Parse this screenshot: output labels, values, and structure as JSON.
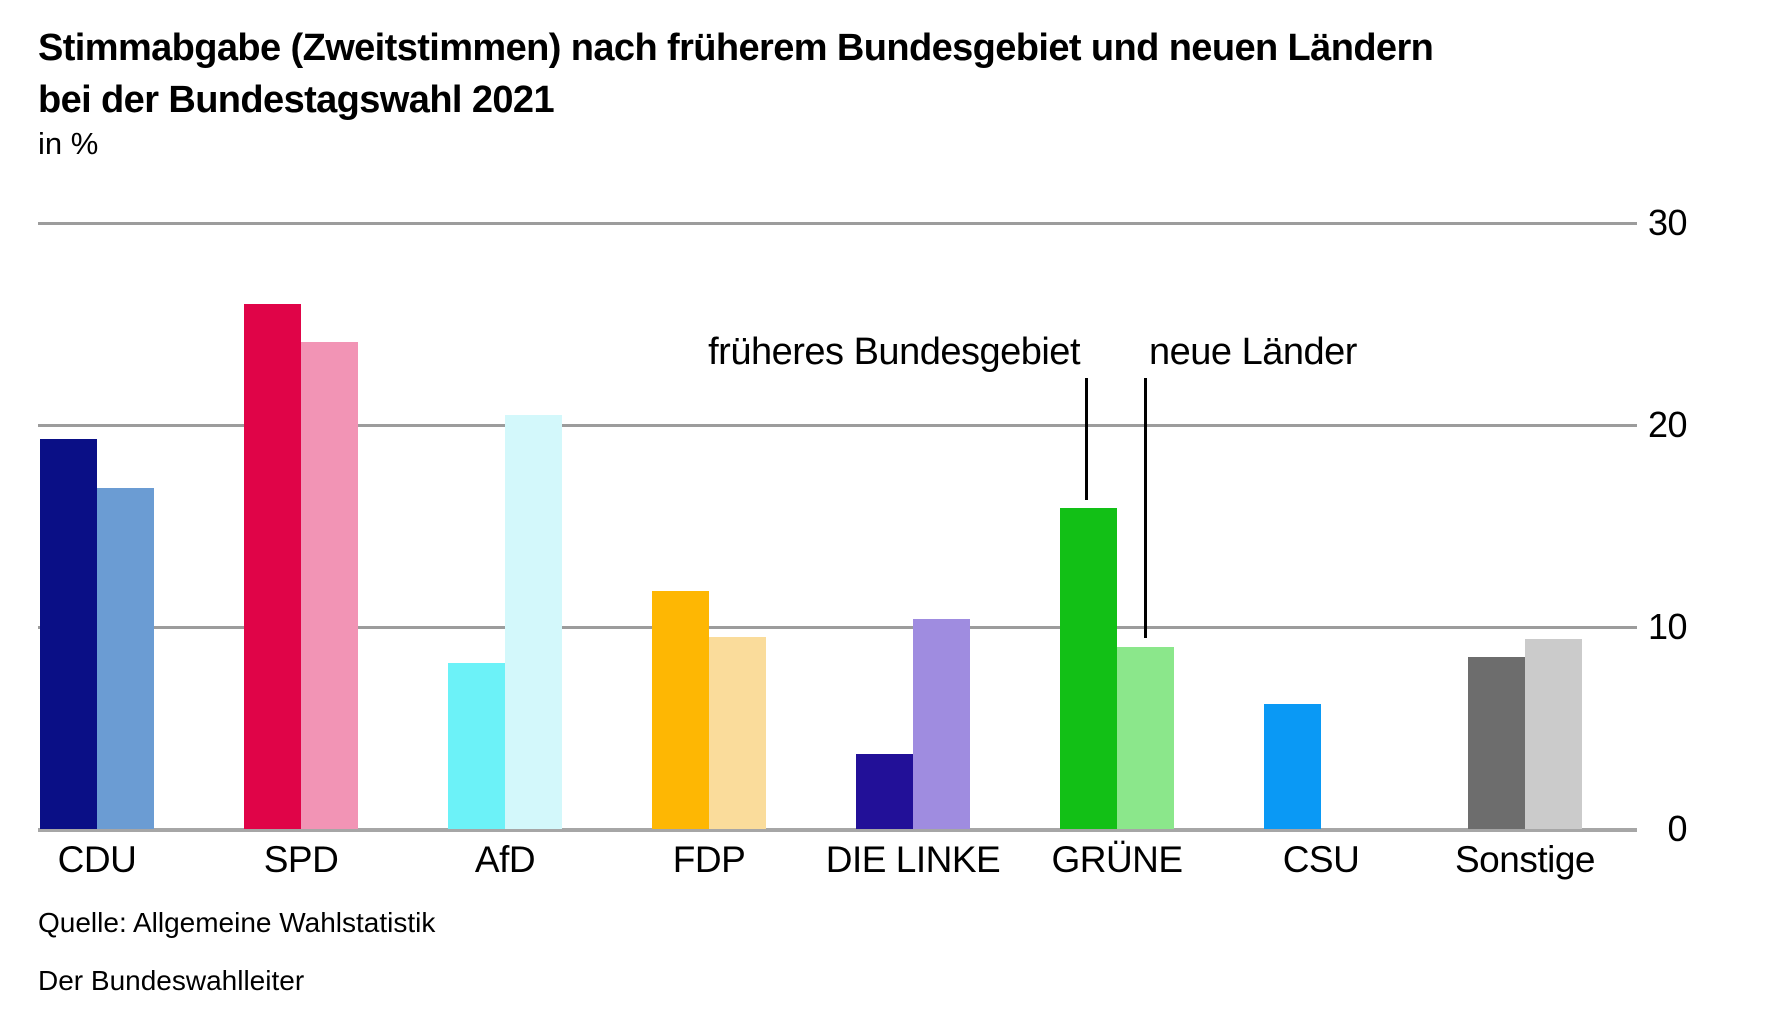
{
  "header": {
    "title_line1": "Stimmabgabe (Zweitstimmen) nach früherem Bundesgebiet und neuen Ländern",
    "title_line2": "bei der Bundestagswahl 2021",
    "subtitle": "in %"
  },
  "annotations": {
    "west_label": "früheres Bundesgebiet",
    "east_label": "neue Länder"
  },
  "source": {
    "line1": "Quelle: Allgemeine Wahlstatistik",
    "line2": "Der Bundeswahlleiter"
  },
  "colors": {
    "gridline": "#9C9C9C",
    "axis_line": "#A6A6A6",
    "annotation_line": "#000000",
    "text": "#000000"
  },
  "chart_data": {
    "type": "bar",
    "title": "Stimmabgabe (Zweitstimmen) nach früherem Bundesgebiet und neuen Ländern bei der Bundestagswahl 2021",
    "ylabel": "in %",
    "xlabel": "",
    "categories": [
      "CDU",
      "SPD",
      "AfD",
      "FDP",
      "DIE LINKE",
      "GRÜNE",
      "CSU",
      "Sonstige"
    ],
    "series": [
      {
        "name": "früheres Bundesgebiet",
        "values": [
          19.3,
          26.0,
          8.2,
          11.8,
          3.7,
          15.9,
          6.2,
          8.5
        ],
        "colors": [
          "#0A0F86",
          "#E00448",
          "#6CF2F8",
          "#FEB703",
          "#221098",
          "#12C016",
          "#0A99F5",
          "#6D6D6D"
        ]
      },
      {
        "name": "neue Länder",
        "values": [
          16.9,
          24.1,
          20.5,
          9.5,
          10.4,
          9.0,
          null,
          9.4
        ],
        "colors": [
          "#6B9CD3",
          "#F294B5",
          "#D3F8FB",
          "#FADC9B",
          "#9F8CE0",
          "#8BE78B",
          null,
          "#CBCBCB"
        ]
      }
    ],
    "ylim": [
      0,
      30
    ],
    "yticks": [
      0,
      10,
      20,
      30
    ],
    "grid": "horizontal",
    "legend_position": "annotation-pointers-over-gruene-bars"
  }
}
